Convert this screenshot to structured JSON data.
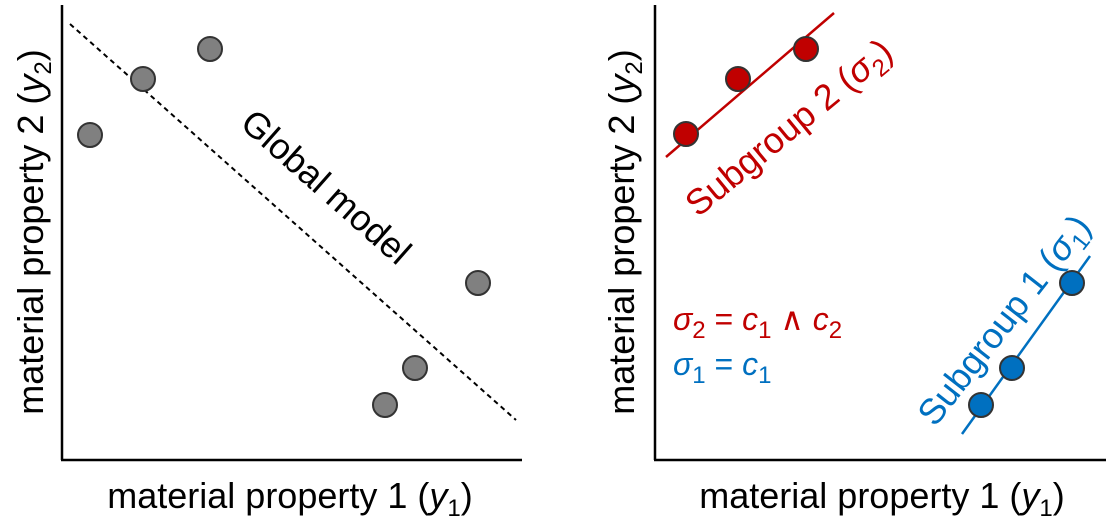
{
  "left_panel": {
    "x_label": {
      "pre": "material property 1 (",
      "var": "y",
      "sub": "1",
      "post": ")"
    },
    "y_label": {
      "pre": "material property 2 (",
      "var": "y",
      "sub": "2",
      "post": ")"
    },
    "model_label": "Global model"
  },
  "right_panel": {
    "x_label": {
      "pre": "material property 1 (",
      "var": "y",
      "sub": "1",
      "post": ")"
    },
    "y_label": {
      "pre": "material property 2 (",
      "var": "y",
      "sub": "2",
      "post": ")"
    },
    "subgroup_2": {
      "pre": "Subgroup 2 (",
      "var": "σ",
      "sub": "2",
      "post": ")"
    },
    "subgroup_1": {
      "pre": "Subgroup 1 (",
      "var": "σ",
      "sub": "1",
      "post": ")"
    },
    "equation_2": [
      "σ",
      "2",
      " = ",
      "c",
      "1",
      " ∧ ",
      "c",
      "2"
    ],
    "equation_1": [
      "σ",
      "1",
      " = ",
      "c",
      "1"
    ]
  }
}
